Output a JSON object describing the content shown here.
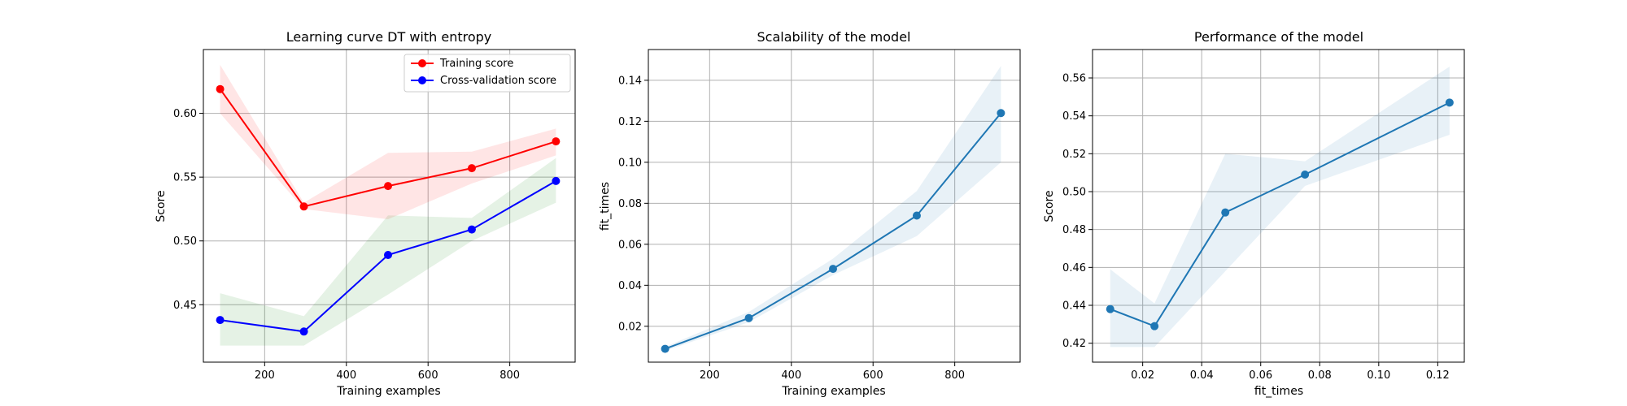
{
  "chart_data": [
    {
      "type": "line",
      "title": "Learning curve DT with entropy",
      "xlabel": "Training examples",
      "ylabel": "Score",
      "xlim": [
        50,
        960
      ],
      "ylim": [
        0.405,
        0.65
      ],
      "xticks": [
        200,
        400,
        600,
        800
      ],
      "yticks": [
        0.45,
        0.5,
        0.55,
        0.6
      ],
      "ytick_decimals": 2,
      "grid": true,
      "legend": "top-right",
      "x": [
        91,
        296,
        502,
        707,
        913
      ],
      "series": [
        {
          "name": "Training score",
          "values": [
            0.619,
            0.527,
            0.543,
            0.557,
            0.578
          ],
          "lower": [
            0.6,
            0.525,
            0.517,
            0.545,
            0.567
          ],
          "upper": [
            0.638,
            0.53,
            0.569,
            0.57,
            0.588
          ],
          "color": "#ff0000",
          "band_color": "#ff0000"
        },
        {
          "name": "Cross-validation score",
          "values": [
            0.438,
            0.429,
            0.489,
            0.509,
            0.547
          ],
          "lower": [
            0.418,
            0.418,
            0.458,
            0.5,
            0.53
          ],
          "upper": [
            0.459,
            0.441,
            0.52,
            0.518,
            0.565
          ],
          "color": "#0000ff",
          "band_color": "#008000"
        }
      ]
    },
    {
      "type": "line",
      "title": "Scalability of the model",
      "xlabel": "Training examples",
      "ylabel": "fit_times",
      "xlim": [
        50,
        960
      ],
      "ylim": [
        0.0025,
        0.155
      ],
      "xticks": [
        200,
        400,
        600,
        800
      ],
      "yticks": [
        0.02,
        0.04,
        0.06,
        0.08,
        0.1,
        0.12,
        0.14
      ],
      "ytick_decimals": 2,
      "grid": true,
      "x": [
        91,
        296,
        502,
        707,
        913
      ],
      "series": [
        {
          "values": [
            0.009,
            0.024,
            0.048,
            0.074,
            0.124
          ],
          "lower": [
            0.008,
            0.022,
            0.045,
            0.064,
            0.1
          ],
          "upper": [
            0.01,
            0.027,
            0.053,
            0.086,
            0.147
          ],
          "color": "#1f77b4",
          "band_color": "#1f77b4"
        }
      ]
    },
    {
      "type": "line",
      "title": "Performance of the model",
      "xlabel": "fit_times",
      "ylabel": "Score",
      "xlim": [
        0.003,
        0.129
      ],
      "ylim": [
        0.41,
        0.575
      ],
      "xticks": [
        0.02,
        0.04,
        0.06,
        0.08,
        0.1,
        0.12
      ],
      "yticks": [
        0.42,
        0.44,
        0.46,
        0.48,
        0.5,
        0.52,
        0.54,
        0.56
      ],
      "xtick_decimals": 2,
      "ytick_decimals": 2,
      "grid": true,
      "x": [
        0.009,
        0.024,
        0.048,
        0.075,
        0.124
      ],
      "series": [
        {
          "values": [
            0.438,
            0.429,
            0.489,
            0.509,
            0.547
          ],
          "lower": [
            0.418,
            0.418,
            0.458,
            0.503,
            0.53
          ],
          "upper": [
            0.459,
            0.441,
            0.52,
            0.516,
            0.566
          ],
          "color": "#1f77b4",
          "band_color": "#1f77b4"
        }
      ]
    }
  ]
}
